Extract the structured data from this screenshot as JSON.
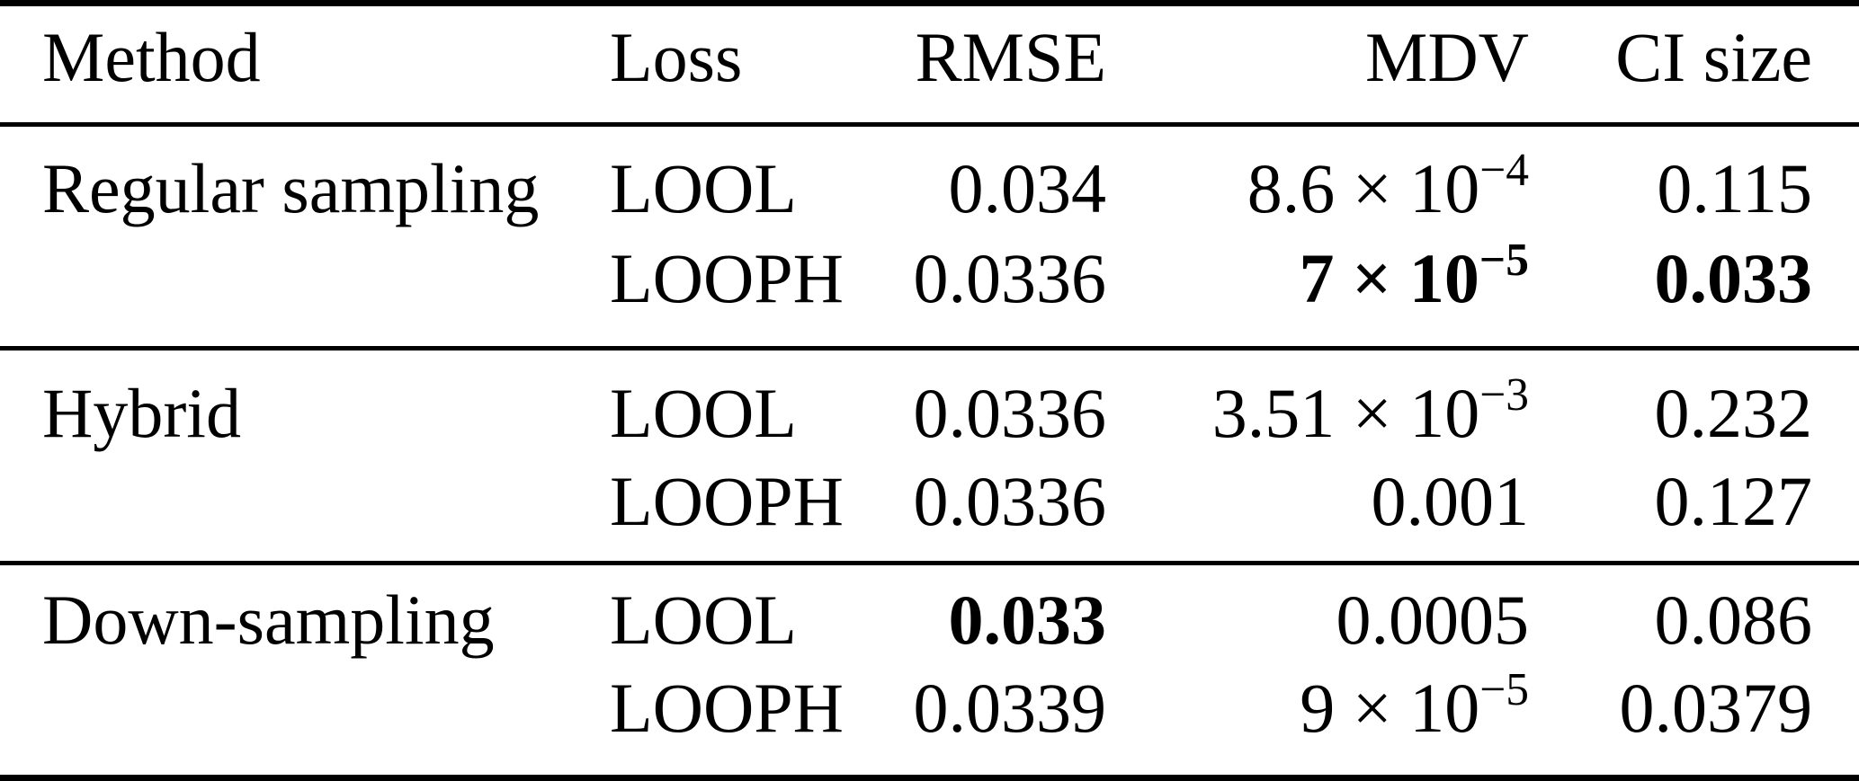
{
  "table": {
    "columns": {
      "method": "Method",
      "loss": "Loss",
      "rmse": "RMSE",
      "mdv": "MDV",
      "ci": "CI size"
    },
    "rows": [
      {
        "method": "Regular sampling",
        "loss": "LOOL",
        "rmse": "0.034",
        "rmse_w": "normal",
        "mdv_base": "8.6 × 10",
        "mdv_exp": "−4",
        "mdv_w": "normal",
        "ci": "0.115",
        "ci_w": "normal"
      },
      {
        "method": "",
        "loss": "LOOPH",
        "rmse": "0.0336",
        "rmse_w": "normal",
        "mdv_base": "7 × 10",
        "mdv_exp": "−5",
        "mdv_w": "bold",
        "ci": "0.033",
        "ci_w": "bold"
      },
      {
        "method": "Hybrid",
        "loss": "LOOL",
        "rmse": "0.0336",
        "rmse_w": "normal",
        "mdv_base": "3.51 × 10",
        "mdv_exp": "−3",
        "mdv_w": "normal",
        "ci": "0.232",
        "ci_w": "normal"
      },
      {
        "method": "",
        "loss": "LOOPH",
        "rmse": "0.0336",
        "rmse_w": "normal",
        "mdv_base": "0.001",
        "mdv_exp": "",
        "mdv_w": "normal",
        "ci": "0.127",
        "ci_w": "normal"
      },
      {
        "method": "Down-sampling",
        "loss": "LOOL",
        "rmse": "0.033",
        "rmse_w": "bold",
        "mdv_base": "0.0005",
        "mdv_exp": "",
        "mdv_w": "normal",
        "ci": "0.086",
        "ci_w": "normal"
      },
      {
        "method": "",
        "loss": "LOOPH",
        "rmse": "0.0339",
        "rmse_w": "normal",
        "mdv_base": "9 × 10",
        "mdv_exp": "−5",
        "mdv_w": "normal",
        "ci": "0.0379",
        "ci_w": "normal"
      }
    ]
  }
}
